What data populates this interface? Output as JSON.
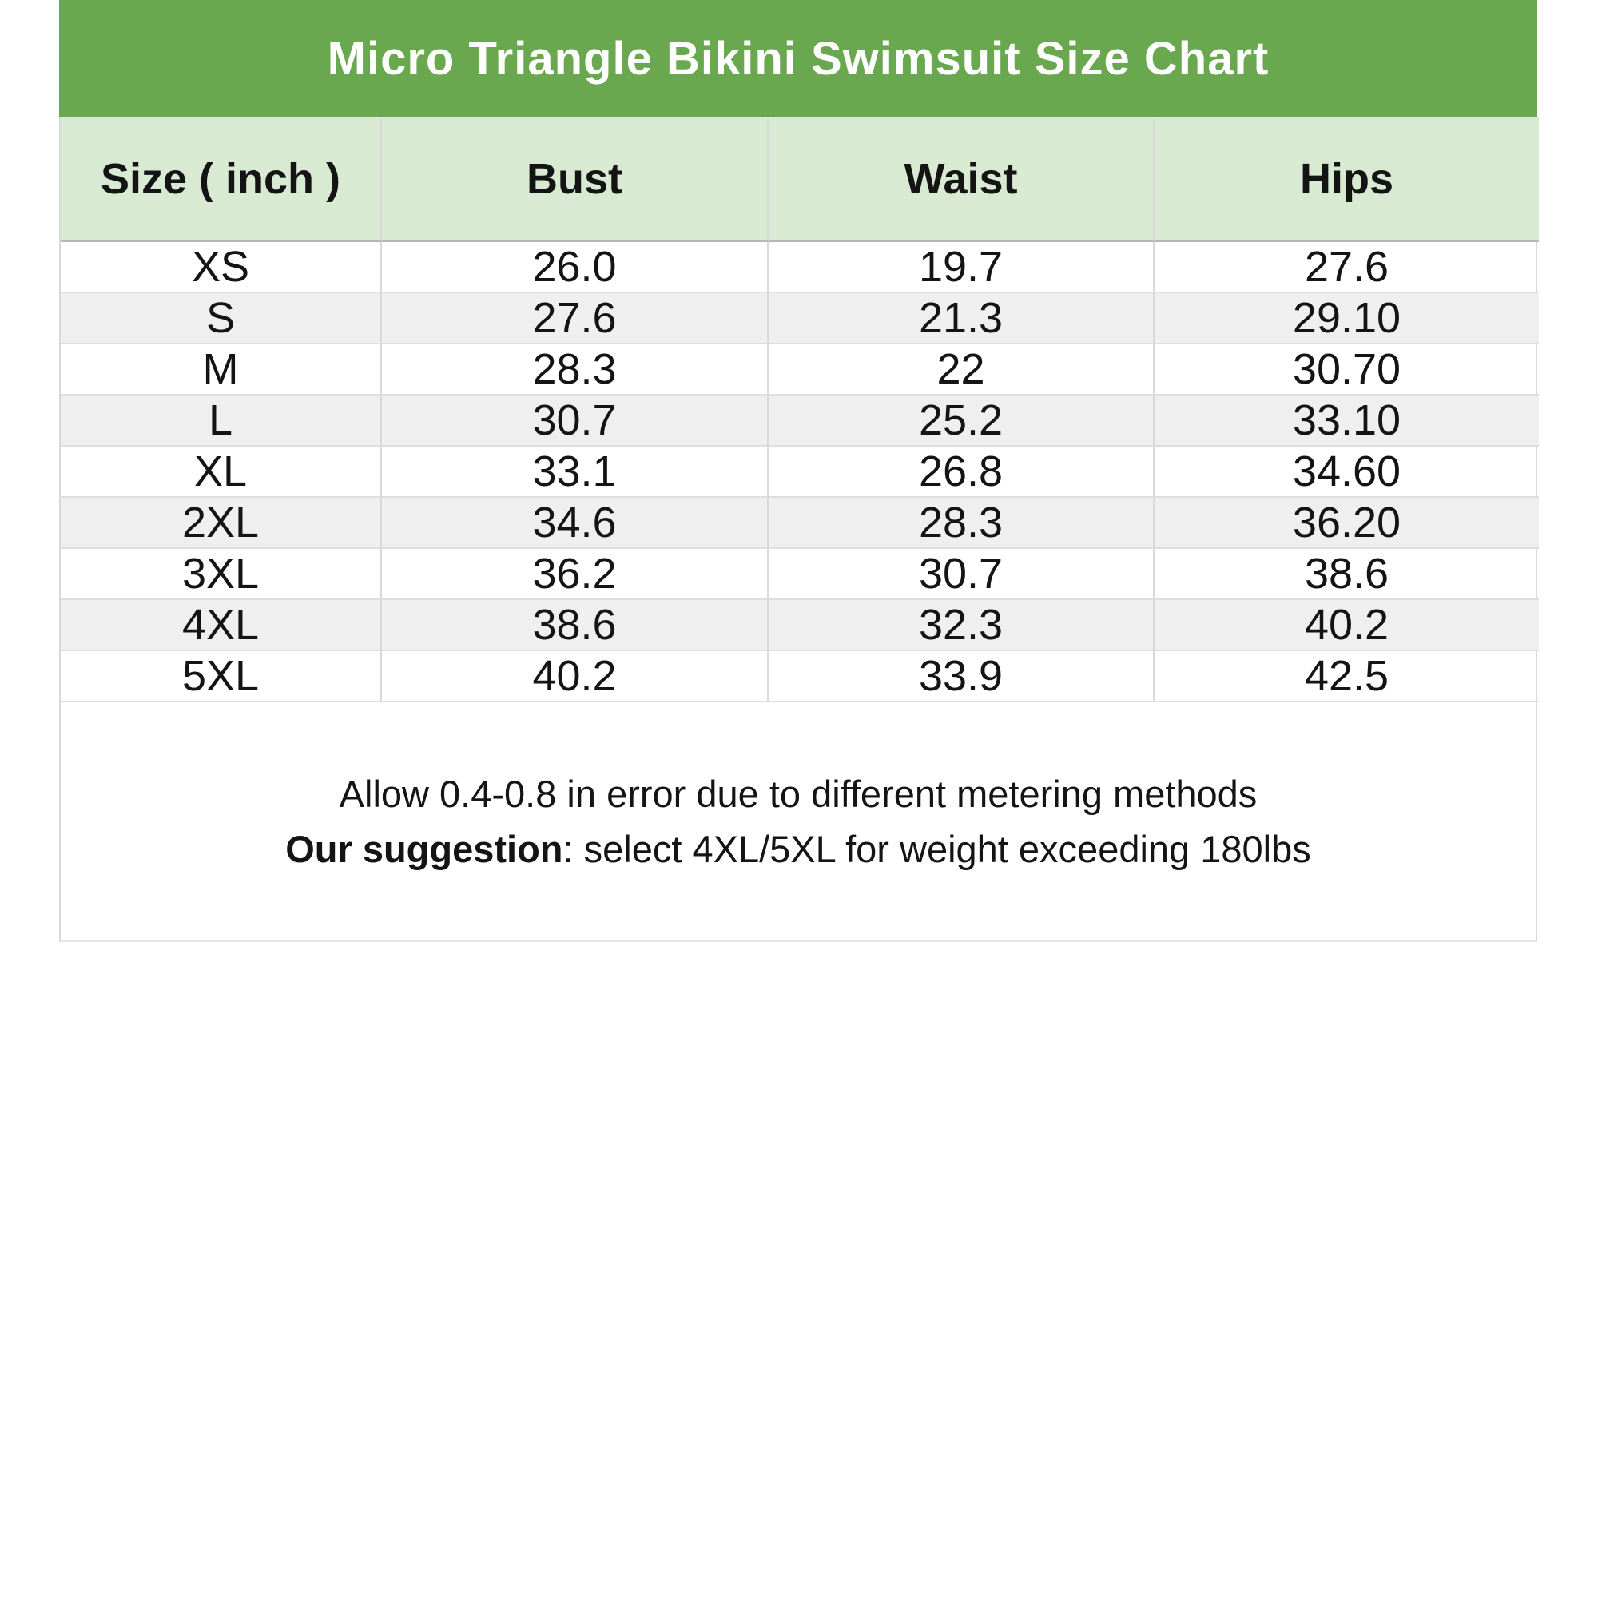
{
  "title": "Micro Triangle Bikini Swimsuit Size Chart",
  "columns": [
    "Size ( inch )",
    "Bust",
    "Waist",
    "Hips"
  ],
  "rows": [
    {
      "size": "XS",
      "bust": "26.0",
      "waist": "19.7",
      "hips": "27.6"
    },
    {
      "size": "S",
      "bust": "27.6",
      "waist": "21.3",
      "hips": "29.10"
    },
    {
      "size": "M",
      "bust": "28.3",
      "waist": "22",
      "hips": "30.70"
    },
    {
      "size": "L",
      "bust": "30.7",
      "waist": "25.2",
      "hips": "33.10"
    },
    {
      "size": "XL",
      "bust": "33.1",
      "waist": "26.8",
      "hips": "34.60"
    },
    {
      "size": "2XL",
      "bust": "34.6",
      "waist": "28.3",
      "hips": "36.20"
    },
    {
      "size": "3XL",
      "bust": "36.2",
      "waist": "30.7",
      "hips": "38.6"
    },
    {
      "size": "4XL",
      "bust": "38.6",
      "waist": "32.3",
      "hips": "40.2"
    },
    {
      "size": "5XL",
      "bust": "40.2",
      "waist": "33.9",
      "hips": "42.5"
    }
  ],
  "notes": {
    "line1": "Allow 0.4-0.8 in error due to different metering methods",
    "line2_bold": "Our suggestion",
    "line2_rest": ": select 4XL/5XL for weight exceeding 180lbs"
  },
  "colors": {
    "title_bg": "#6aa84f",
    "title_text": "#ffffff",
    "header_bg": "#d9ead3",
    "row_bg": "#ffffff",
    "row_alt_bg": "#efefef",
    "border": "#d9d9d9",
    "header_border": "#b7b7b7",
    "text": "#141414"
  },
  "chart_data": {
    "type": "table",
    "title": "Micro Triangle Bikini Swimsuit Size Chart",
    "columns": [
      "Size ( inch )",
      "Bust",
      "Waist",
      "Hips"
    ],
    "rows": [
      [
        "XS",
        26.0,
        19.7,
        27.6
      ],
      [
        "S",
        27.6,
        21.3,
        29.1
      ],
      [
        "M",
        28.3,
        22,
        30.7
      ],
      [
        "L",
        30.7,
        25.2,
        33.1
      ],
      [
        "XL",
        33.1,
        26.8,
        34.6
      ],
      [
        "2XL",
        34.6,
        28.3,
        36.2
      ],
      [
        "3XL",
        36.2,
        30.7,
        38.6
      ],
      [
        "4XL",
        38.6,
        32.3,
        40.2
      ],
      [
        "5XL",
        40.2,
        33.9,
        42.5
      ]
    ],
    "units": "inch",
    "notes": [
      "Allow 0.4-0.8 in error due to different metering methods",
      "Our suggestion: select 4XL/5XL for weight exceeding 180lbs"
    ]
  }
}
